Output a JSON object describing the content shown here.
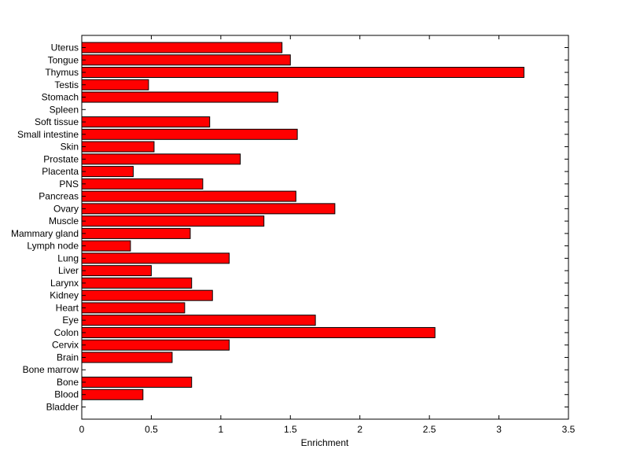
{
  "chart_data": {
    "type": "bar",
    "orientation": "horizontal",
    "categories": [
      "Uterus",
      "Tongue",
      "Thymus",
      "Testis",
      "Stomach",
      "Spleen",
      "Soft tissue",
      "Small intestine",
      "Skin",
      "Prostate",
      "Placenta",
      "PNS",
      "Pancreas",
      "Ovary",
      "Muscle",
      "Mammary gland",
      "Lymph node",
      "Lung",
      "Liver",
      "Larynx",
      "Kidney",
      "Heart",
      "Eye",
      "Colon",
      "Cervix",
      "Brain",
      "Bone marrow",
      "Bone",
      "Blood",
      "Bladder"
    ],
    "values": [
      1.44,
      1.5,
      3.18,
      0.48,
      1.41,
      0,
      0.92,
      1.55,
      0.52,
      1.14,
      0.37,
      0.87,
      1.54,
      1.82,
      1.31,
      0.78,
      0.35,
      1.06,
      0.5,
      0.79,
      0.94,
      0.74,
      1.68,
      2.54,
      1.06,
      0.65,
      0,
      0.79,
      0.44,
      0
    ],
    "title": "",
    "xlabel": "Enrichment",
    "ylabel": "",
    "xlim": [
      0,
      3.5
    ],
    "xticks": [
      0,
      0.5,
      1,
      1.5,
      2,
      2.5,
      3,
      3.5
    ],
    "xtick_labels": [
      "0",
      "0.5",
      "1",
      "1.5",
      "2",
      "2.5",
      "3",
      "3.5"
    ],
    "grid": false,
    "colors": {
      "bar_fill": "#ff0000",
      "bar_edge": "#000000",
      "axes": "#000000"
    }
  }
}
